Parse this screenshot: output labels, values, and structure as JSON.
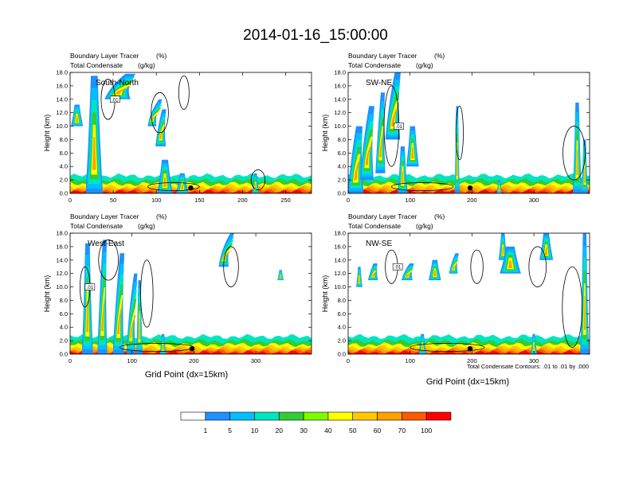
{
  "title": "2014-01-16_15:00:00",
  "panel_subtitle_left": "Boundary Layer Tracer",
  "panel_subtitle_left_units": "(%)",
  "panel_subtitle_left2": "Total Condensate",
  "panel_subtitle_left2_units": "(g/kg)",
  "ylabel": "Height (km)",
  "xlabel": "Grid Point (dx=15km)",
  "contour_note": "Total Condensate Contours: .01 to .01 by .000",
  "contour_label": ".01",
  "colorbar": {
    "colors": [
      "#ffffff",
      "#1e90ff",
      "#00bfff",
      "#00e5c0",
      "#32cd32",
      "#7cfc00",
      "#ffff00",
      "#ffc800",
      "#ffa000",
      "#ff5a00",
      "#ff0000"
    ],
    "labels": [
      "1",
      "5",
      "10",
      "20",
      "30",
      "40",
      "50",
      "60",
      "70",
      "100"
    ]
  },
  "chart_data": [
    {
      "type": "heatmap",
      "name": "South-North",
      "ylim": [
        0,
        18
      ],
      "xlim": [
        0,
        280
      ],
      "xticks": [
        "0",
        "50",
        "100",
        "150",
        "200",
        "250"
      ],
      "xtick_values": [
        0,
        50,
        100,
        150,
        200,
        250
      ],
      "yticks": [
        "0.0",
        "2.0",
        "4.0",
        "6.0",
        "8.0",
        "10.0",
        "12.0",
        "14.0",
        "16.0",
        "18.0"
      ],
      "marker_x": 140
    },
    {
      "type": "heatmap",
      "name": "SW-NE",
      "ylim": [
        0,
        18
      ],
      "xlim": [
        0,
        390
      ],
      "xticks": [
        "0",
        "100",
        "200",
        "300"
      ],
      "xtick_values": [
        0,
        100,
        200,
        300
      ],
      "yticks": [
        "0.0",
        "2.0",
        "4.0",
        "6.0",
        "8.0",
        "10.0",
        "12.0",
        "14.0",
        "16.0",
        "18.0"
      ],
      "marker_x": 197
    },
    {
      "type": "heatmap",
      "name": "West-East",
      "ylim": [
        0,
        18
      ],
      "xlim": [
        0,
        390
      ],
      "xticks": [
        "0",
        "100",
        "200",
        "300"
      ],
      "xtick_values": [
        0,
        100,
        200,
        300
      ],
      "yticks": [
        "0.0",
        "2.0",
        "4.0",
        "6.0",
        "8.0",
        "10.0",
        "12.0",
        "14.0",
        "16.0",
        "18.0"
      ],
      "marker_x": 197
    },
    {
      "type": "heatmap",
      "name": "NW-SE",
      "ylim": [
        0,
        18
      ],
      "xlim": [
        0,
        390
      ],
      "xticks": [
        "0",
        "100",
        "200",
        "300"
      ],
      "xtick_values": [
        0,
        100,
        200,
        300
      ],
      "yticks": [
        "0.0",
        "2.0",
        "4.0",
        "6.0",
        "8.0",
        "10.0",
        "12.0",
        "14.0",
        "16.0",
        "18.0"
      ],
      "marker_x": 197
    }
  ]
}
